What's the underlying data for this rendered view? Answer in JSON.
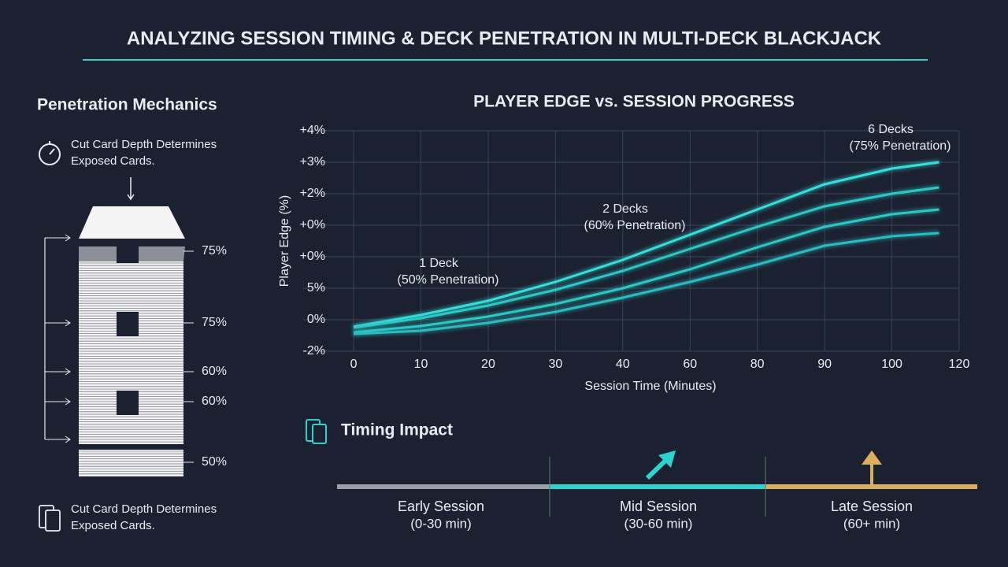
{
  "title": "ANALYZING SESSION TIMING & DECK PENETRATION IN MULTI-DECK BLACKJACK",
  "penetration": {
    "heading": "Penetration Mechanics",
    "caption_top": [
      "Cut Card Depth Determines",
      "Exposed Cards."
    ],
    "levels": [
      "75%",
      "75%",
      "60%",
      "60%",
      "50%"
    ],
    "caption_bottom": [
      "Cut Card Depth Determines",
      "Exposed Cards."
    ]
  },
  "chart_data": {
    "type": "line",
    "title": "PLAYER EDGE vs. SESSION PROGRESS",
    "x_label": "Session Time (Minutes)",
    "y_label": "Player Edge (%)",
    "xlim": [
      -0.75,
      9
    ],
    "xticks": [
      0,
      {
        "value": 1,
        "label": "10"
      },
      {
        "value": 2,
        "label": "20"
      },
      {
        "value": 3,
        "label": "30"
      },
      {
        "value": 4,
        "label": "40"
      },
      {
        "value": 5,
        "label": "60"
      },
      {
        "value": 6,
        "label": "80"
      },
      {
        "value": 7,
        "label": "90"
      },
      {
        "value": 8,
        "label": "100"
      },
      {
        "value": 9,
        "label": "120"
      }
    ],
    "ylim": [
      0,
      7
    ],
    "yticks": [
      {
        "value": 0,
        "label": "-2%"
      },
      {
        "value": 1,
        "label": "0%"
      },
      {
        "value": 2,
        "label": "5%"
      },
      {
        "value": 3,
        "label": "+0%"
      },
      {
        "value": 4,
        "label": "+0%"
      },
      {
        "value": 5,
        "label": "+2%"
      },
      {
        "value": 6,
        "label": "+3%"
      },
      {
        "value": 7,
        "label": "+4%"
      }
    ],
    "grid": true,
    "x": [
      0,
      1,
      2,
      3,
      4,
      5,
      6,
      7,
      8,
      8.7
    ],
    "series": [
      {
        "color": "#35e0dc",
        "values": [
          0.78,
          1.15,
          1.6,
          2.2,
          2.9,
          3.7,
          4.5,
          5.3,
          5.8,
          6.0
        ]
      },
      {
        "color": "#2cc9c6",
        "values": [
          0.75,
          1.05,
          1.45,
          1.95,
          2.55,
          3.25,
          3.95,
          4.6,
          5.0,
          5.2
        ]
      },
      {
        "color": "#2cc9c6",
        "values": [
          0.6,
          0.8,
          1.1,
          1.5,
          2.0,
          2.6,
          3.3,
          3.95,
          4.35,
          4.5
        ]
      },
      {
        "color": "#2bbcc0",
        "values": [
          0.55,
          0.65,
          0.9,
          1.25,
          1.7,
          2.2,
          2.75,
          3.35,
          3.65,
          3.75
        ]
      }
    ],
    "annotations": [
      {
        "text": "1 Deck",
        "subtext": "(50% Penetration)"
      },
      {
        "text": "2 Decks",
        "subtext": "(60% Penetration)"
      },
      {
        "text": "6 Decks",
        "subtext": "(75% Penetration)"
      }
    ]
  },
  "timing": {
    "heading": "Timing Impact",
    "phases": [
      {
        "name": "Early Session",
        "range": "(0-30 min)"
      },
      {
        "name": "Mid Session",
        "range": "(30-60 min)"
      },
      {
        "name": "Late Session",
        "range": "(60+ min)"
      }
    ]
  }
}
